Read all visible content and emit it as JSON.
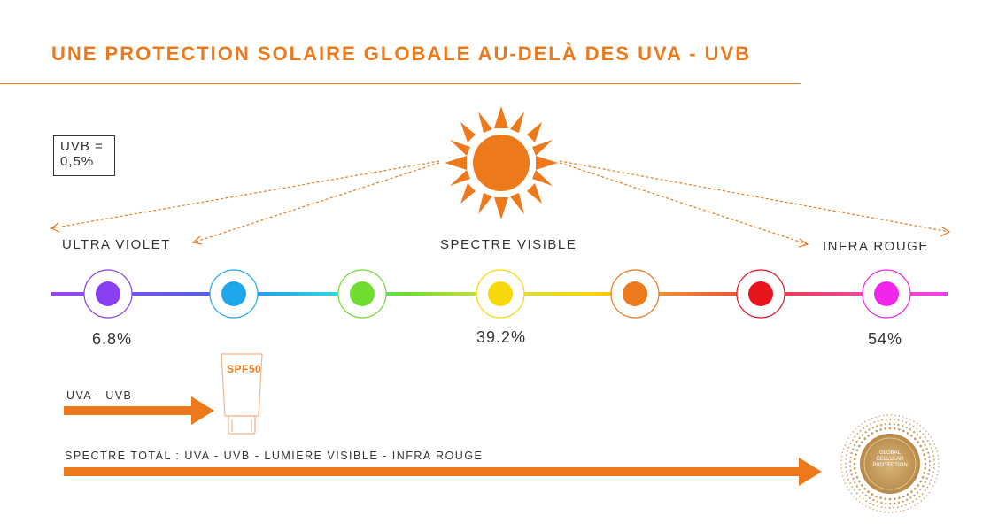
{
  "title": "UNE PROTECTION SOLAIRE GLOBALE AU-DELÀ DES UVA - UVB",
  "uvb_note": {
    "line1": "UVB =",
    "line2": "0,5%"
  },
  "spectrum": {
    "labels": {
      "left": "ULTRA VIOLET",
      "center": "SPECTRE VISIBLE",
      "right": "INFRA ROUGE"
    },
    "percentages": {
      "ultra_violet": "6.8%",
      "visible": "39.2%",
      "infra_red": "54%"
    },
    "dots": [
      {
        "color": "#8a3ff0"
      },
      {
        "color": "#1ea6ec"
      },
      {
        "color": "#6fdc2f"
      },
      {
        "color": "#f7d80b"
      },
      {
        "color": "#ec7a1c"
      },
      {
        "color": "#e8141e"
      },
      {
        "color": "#f225ea"
      }
    ]
  },
  "arrows": {
    "uva_uvb": "UVA - UVB",
    "total": "SPECTRE TOTAL : UVA - UVB - LUMIERE VISIBLE - INFRA ROUGE"
  },
  "product": {
    "label": "SPF50"
  },
  "seal": {
    "line1": "GLOBAL",
    "line2": "CELLULAR",
    "line3": "PROTECTION"
  },
  "colors": {
    "accent": "#ec7a1c",
    "seal": "#c49a5a"
  }
}
